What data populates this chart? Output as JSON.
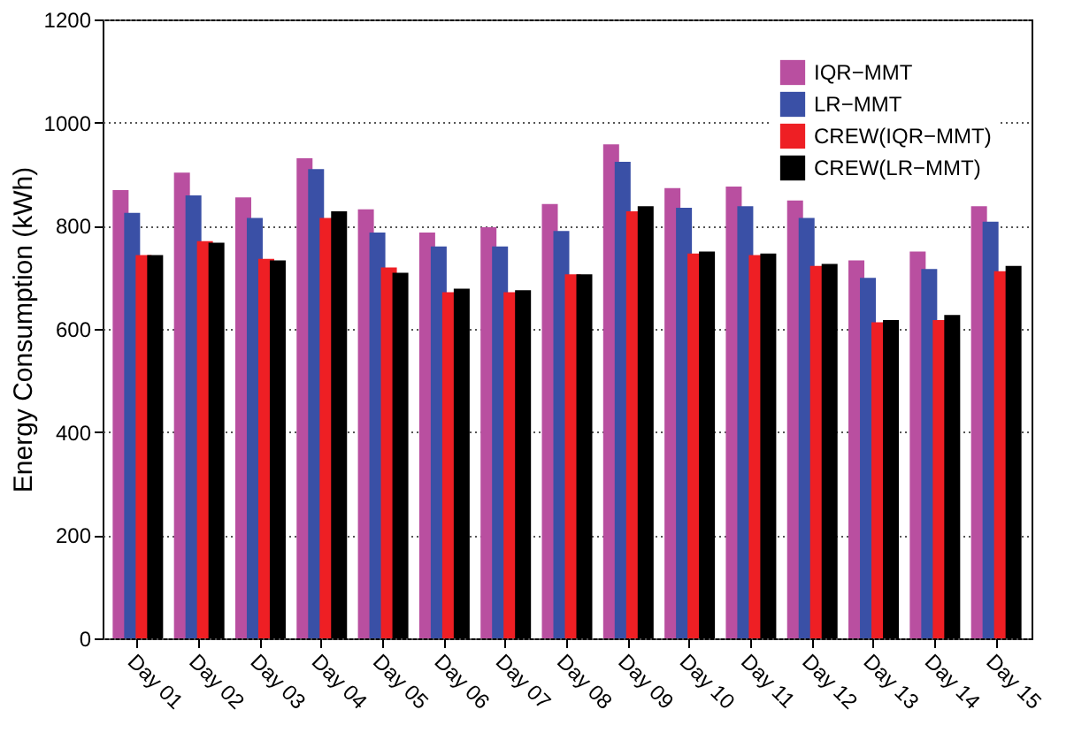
{
  "chart_data": {
    "type": "bar",
    "ylabel": "Energy Consumption (kWh)",
    "categories": [
      "Day 01",
      "Day 02",
      "Day 03",
      "Day 04",
      "Day 05",
      "Day 06",
      "Day 07",
      "Day 08",
      "Day 09",
      "Day 10",
      "Day 11",
      "Day 12",
      "Day 13",
      "Day 14",
      "Day 15"
    ],
    "series": [
      {
        "name": "IQR−MMT",
        "color": "#b94fa0",
        "values": [
          869,
          903,
          855,
          931,
          832,
          787,
          797,
          842,
          958,
          873,
          876,
          849,
          733,
          750,
          838
        ]
      },
      {
        "name": "LR−MMT",
        "color": "#3a50a6",
        "values": [
          825,
          859,
          815,
          910,
          787,
          760,
          760,
          790,
          924,
          835,
          838,
          815,
          699,
          716,
          808
        ]
      },
      {
        "name": "CREW(IQR−MMT)",
        "color": "#ee1f24",
        "values": [
          743,
          770,
          736,
          815,
          719,
          671,
          671,
          706,
          828,
          746,
          743,
          722,
          613,
          617,
          712
        ]
      },
      {
        "name": "CREW(LR−MMT)",
        "color": "#000000",
        "values": [
          743,
          767,
          733,
          828,
          709,
          678,
          675,
          706,
          838,
          750,
          746,
          726,
          617,
          627,
          722
        ]
      }
    ],
    "ylim": [
      0,
      1200
    ],
    "yticks": [
      0,
      200,
      400,
      600,
      800,
      1000,
      1200
    ],
    "grid": "y",
    "legend": "top right"
  }
}
